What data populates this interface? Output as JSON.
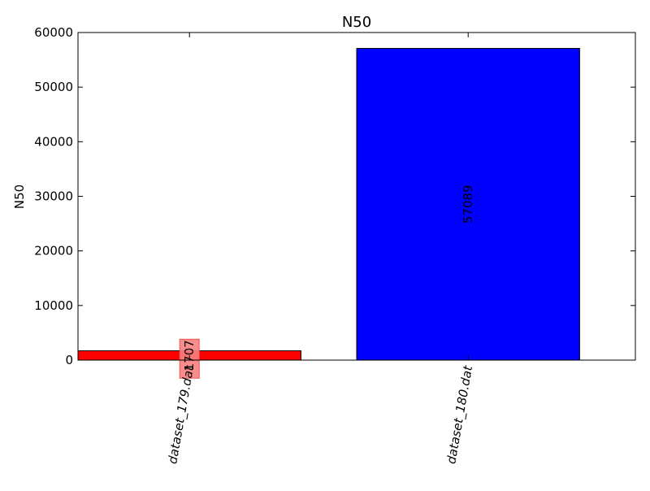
{
  "chart_data": {
    "type": "bar",
    "title": "N50",
    "ylabel": "N50",
    "xlabel": "",
    "categories": [
      "dataset_179.dat",
      "dataset_180.dat"
    ],
    "values": [
      1707,
      57089
    ],
    "value_labels": [
      "1707",
      "57089"
    ],
    "colors": [
      "#ff0000",
      "#0000ff"
    ],
    "label_box_color": "#f88080",
    "ylim": [
      0,
      60000
    ],
    "yticks": [
      0,
      10000,
      20000,
      30000,
      40000,
      50000,
      60000
    ],
    "ytick_labels": [
      "0",
      "10000",
      "20000",
      "30000",
      "40000",
      "50000",
      "60000"
    ],
    "grid": false,
    "legend": "none"
  }
}
